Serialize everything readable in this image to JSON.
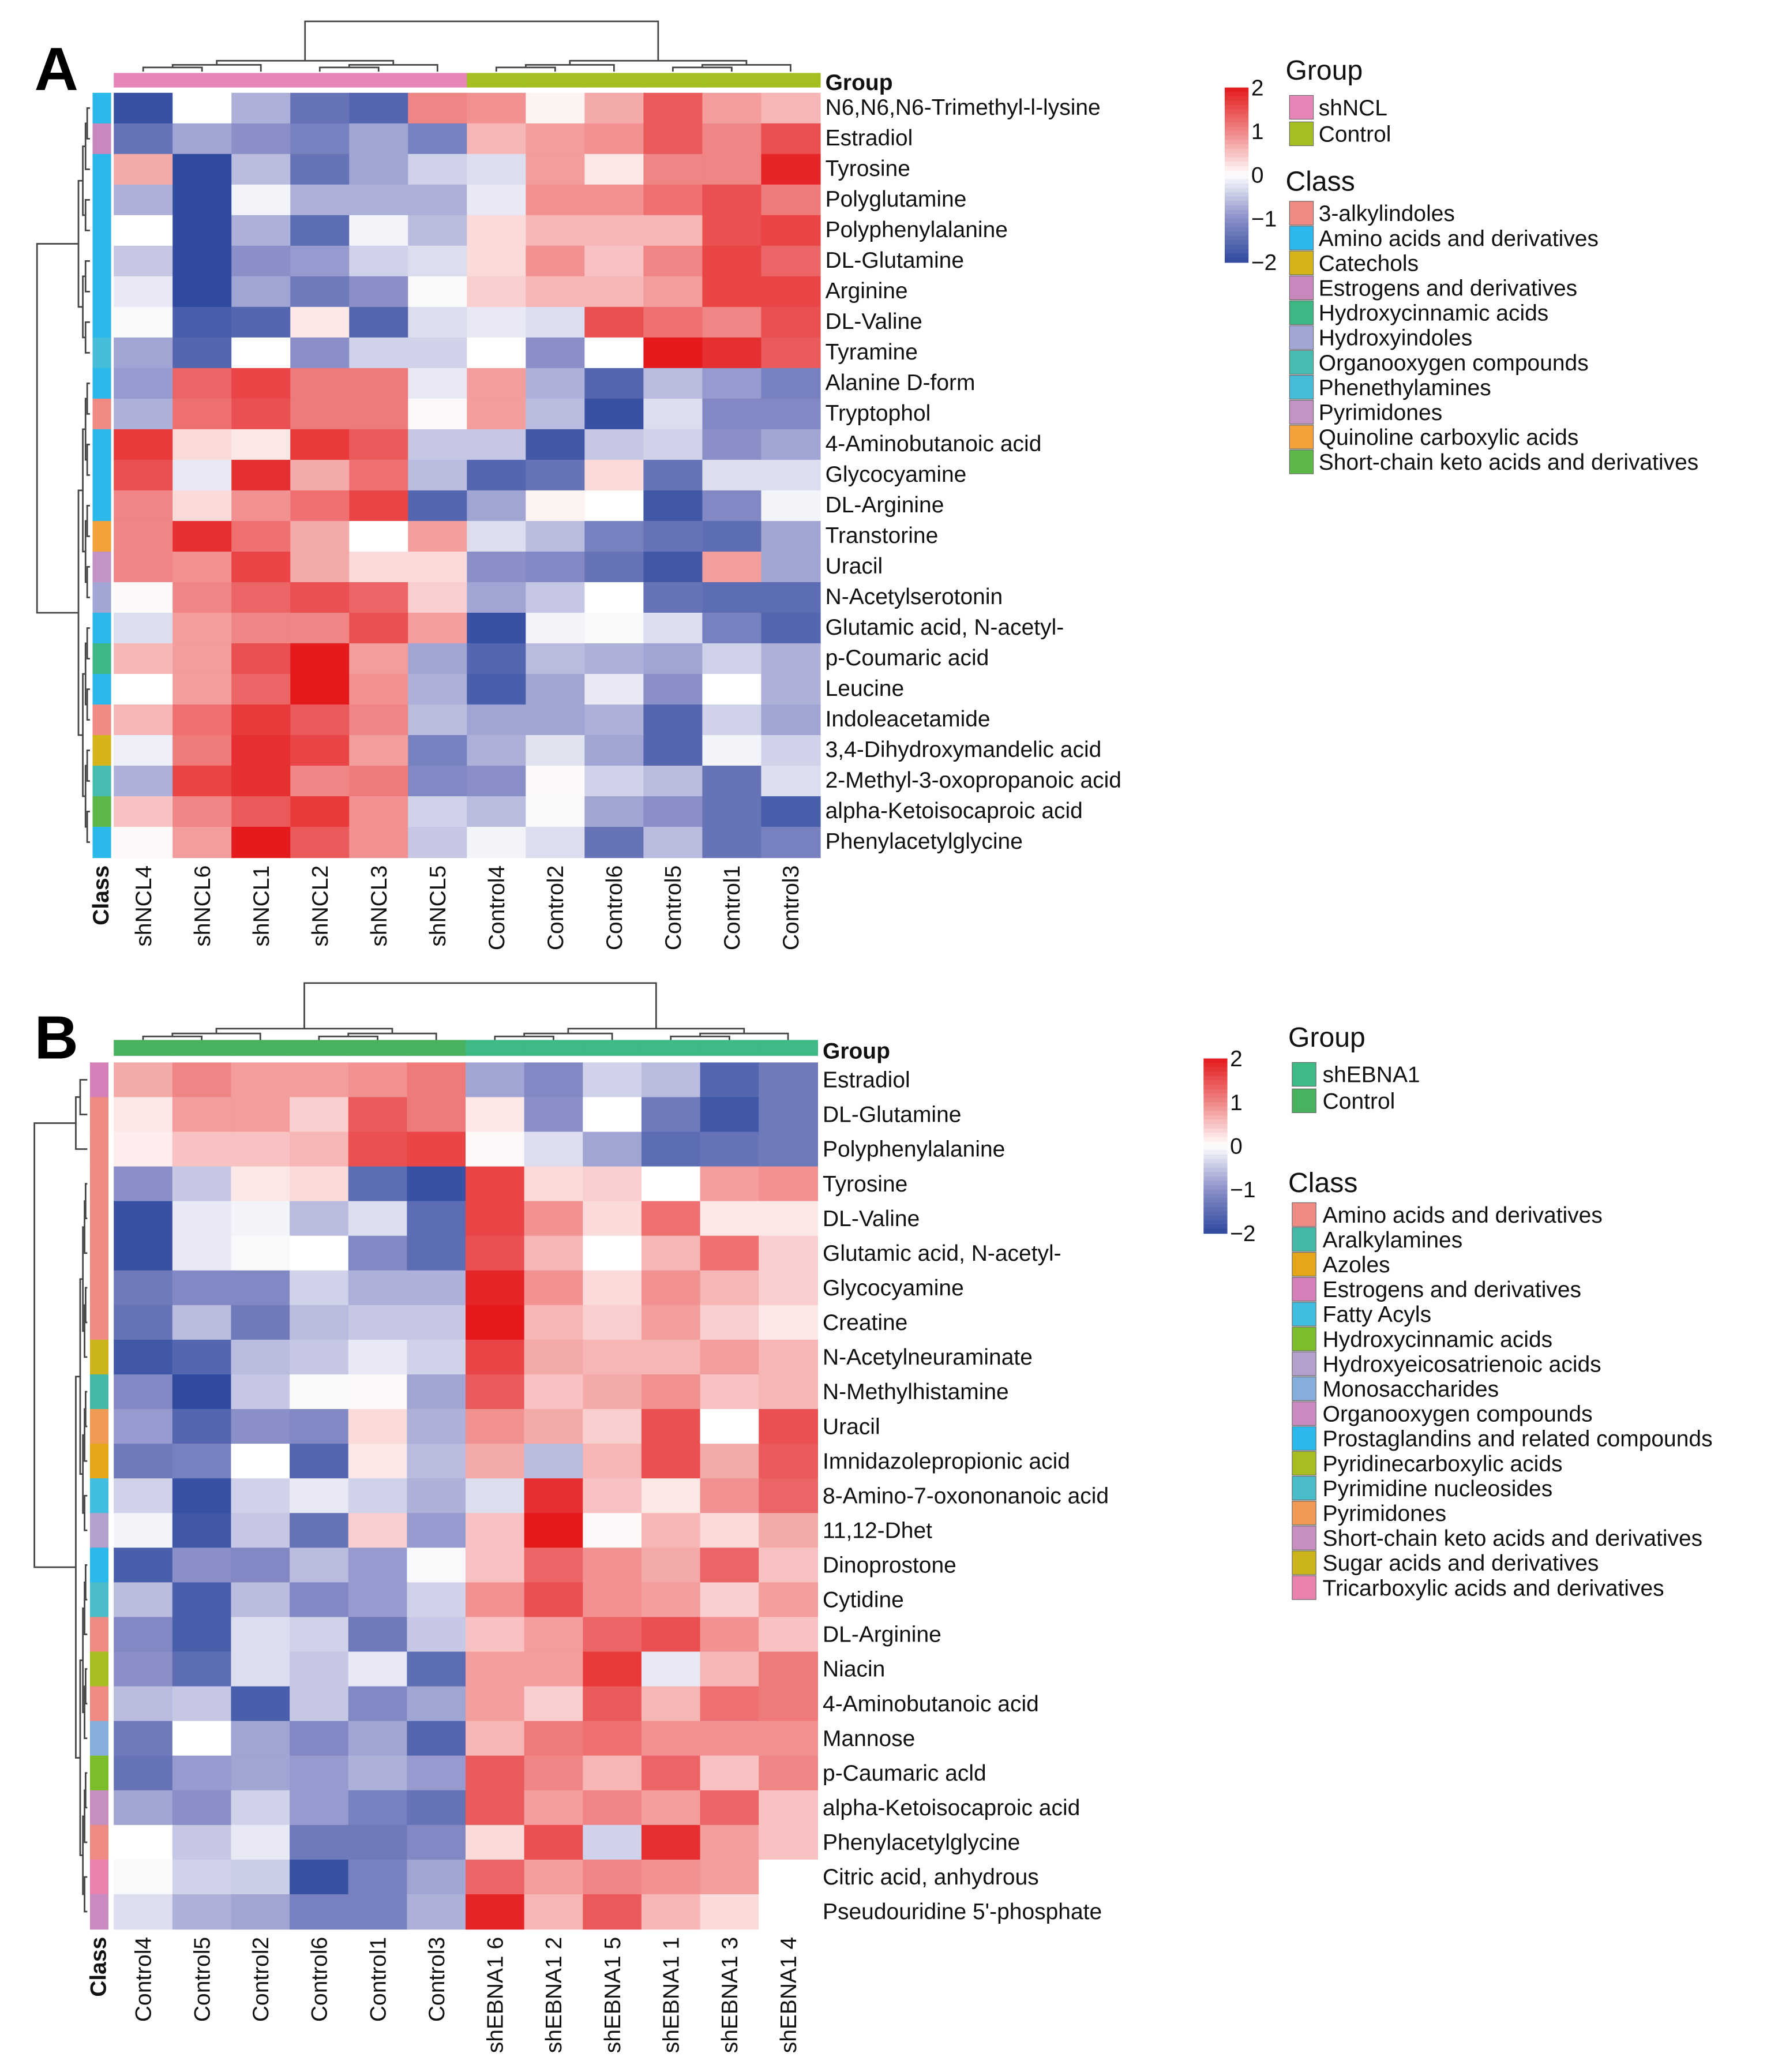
{
  "chart_data": [
    {
      "type": "heatmap",
      "panel_label": "A",
      "group_header": "Group",
      "class_header": "Class",
      "columns": [
        "shNCL4",
        "shNCL6",
        "shNCL1",
        "shNCL2",
        "shNCL3",
        "shNCL5",
        "Control4",
        "Control2",
        "Control6",
        "Control5",
        "Control1",
        "Control3"
      ],
      "column_groups": [
        "shNCL",
        "shNCL",
        "shNCL",
        "shNCL",
        "shNCL",
        "shNCL",
        "Control",
        "Control",
        "Control",
        "Control",
        "Control",
        "Control"
      ],
      "rows": [
        "N6,N6,N6-Trimethyl-l-lysine",
        "Estradiol",
        "Tyrosine",
        "Polyglutamine",
        "Polyphenylalanine",
        "DL-Glutamine",
        "Arginine",
        "DL-Valine",
        "Tyramine",
        "Alanine D-form",
        "Tryptophol",
        "4-Aminobutanoic acid",
        "Glycocyamine",
        "DL-Arginine",
        "Transtorine",
        "Uracil",
        "N-Acetylserotonin",
        "Glutamic acid, N-acetyl-",
        "p-Coumaric acid",
        "Leucine",
        "Indoleacetamide",
        "3,4-Dihydroxymandelic acid",
        "2-Methyl-3-oxopropanoic acid",
        "alpha-Ketoisocaproic acid",
        "Phenylacetylglycine"
      ],
      "row_classes": [
        "Amino acids and derivatives",
        "Estrogens and derivatives",
        "Amino acids and derivatives",
        "Amino acids and derivatives",
        "Amino acids and derivatives",
        "Amino acids and derivatives",
        "Amino acids and derivatives",
        "Amino acids and derivatives",
        "Phenethylamines",
        "Amino acids and derivatives",
        "3-alkylindoles",
        "Amino acids and derivatives",
        "Amino acids and derivatives",
        "Amino acids and derivatives",
        "Quinoline carboxylic acids",
        "Pyrimidones",
        "Hydroxyindoles",
        "Amino acids and derivatives",
        "Hydroxycinnamic acids",
        "Amino acids and derivatives",
        "3-alkylindoles",
        "Catechols",
        "Organooxygen compounds",
        "Short-chain keto acids and derivatives",
        "Amino acids and derivatives"
      ],
      "values": [
        [
          -1.9,
          0,
          -0.7,
          -1.4,
          -1.6,
          1.0,
          0.9,
          0.1,
          0.7,
          1.4,
          0.8,
          0.6
        ],
        [
          -1.4,
          -0.8,
          -1.0,
          -1.2,
          -0.8,
          -1.2,
          0.6,
          0.8,
          0.9,
          1.4,
          1.0,
          1.5
        ],
        [
          0.7,
          -2,
          -0.6,
          -1.4,
          -0.8,
          -0.4,
          -0.3,
          0.8,
          0.2,
          1.0,
          1.0,
          1.9
        ],
        [
          -0.7,
          -2,
          -0.1,
          -0.7,
          -0.7,
          -0.7,
          -0.2,
          0.9,
          0.9,
          1.2,
          1.5,
          1.1
        ],
        [
          0,
          -2,
          -0.7,
          -1.5,
          -0.1,
          -0.6,
          0.3,
          0.6,
          0.6,
          0.6,
          1.5,
          1.6
        ],
        [
          -0.5,
          -2,
          -1.0,
          -0.9,
          -0.4,
          -0.3,
          0.3,
          0.9,
          0.5,
          1.0,
          1.6,
          1.3
        ],
        [
          -0.2,
          -2,
          -0.8,
          -1.3,
          -1.0,
          -0.05,
          0.4,
          0.6,
          0.6,
          0.8,
          1.6,
          1.6
        ],
        [
          -0.05,
          -1.7,
          -1.6,
          0.2,
          -1.6,
          -0.3,
          -0.2,
          -0.3,
          1.5,
          1.2,
          1.0,
          1.5
        ],
        [
          -0.8,
          -1.6,
          0,
          -1.0,
          -0.4,
          -0.4,
          0,
          -1.0,
          0,
          2.0,
          1.8,
          1.4
        ],
        [
          -0.9,
          1.3,
          1.6,
          1.1,
          1.1,
          -0.2,
          0.8,
          -0.7,
          -1.6,
          -0.6,
          -0.9,
          -1.2
        ],
        [
          -0.7,
          1.2,
          1.5,
          1.1,
          1.1,
          0.05,
          0.8,
          -0.6,
          -1.9,
          -0.3,
          -1.1,
          -1.1
        ],
        [
          1.7,
          0.3,
          0.2,
          1.7,
          1.4,
          -0.5,
          -0.5,
          -1.8,
          -0.5,
          -0.4,
          -1.0,
          -0.8
        ],
        [
          1.5,
          -0.2,
          1.8,
          0.7,
          1.2,
          -0.6,
          -1.6,
          -1.4,
          0.3,
          -1.4,
          -0.3,
          -0.3
        ],
        [
          1.0,
          0.3,
          0.9,
          1.2,
          1.6,
          -1.6,
          -0.8,
          0.1,
          0,
          -1.8,
          -1.1,
          -0.1
        ],
        [
          1.0,
          1.8,
          1.2,
          0.7,
          0,
          0.8,
          -0.3,
          -0.6,
          -1.2,
          -1.4,
          -1.5,
          -0.8
        ],
        [
          1.0,
          0.9,
          1.6,
          0.7,
          0.3,
          0.3,
          -1.0,
          -1.1,
          -1.4,
          -1.8,
          0.8,
          -0.8
        ],
        [
          0.05,
          1.0,
          1.3,
          1.5,
          1.3,
          0.4,
          -0.8,
          -0.5,
          0,
          -1.4,
          -1.5,
          -1.5
        ],
        [
          -0.3,
          0.8,
          1.0,
          1.0,
          1.5,
          0.8,
          -1.9,
          -0.1,
          -0.05,
          -0.3,
          -1.2,
          -1.6
        ],
        [
          0.6,
          0.8,
          1.5,
          2.0,
          0.8,
          -0.8,
          -1.6,
          -0.6,
          -0.7,
          -0.8,
          -0.4,
          -0.7
        ],
        [
          0,
          0.8,
          1.3,
          2.0,
          0.9,
          -0.7,
          -1.7,
          -0.8,
          -0.2,
          -1.0,
          0,
          -0.7
        ],
        [
          0.6,
          1.2,
          1.7,
          1.4,
          1.0,
          -0.6,
          -0.8,
          -0.8,
          -0.7,
          -1.6,
          -0.4,
          -0.8
        ],
        [
          -0.15,
          1.1,
          1.8,
          1.6,
          0.8,
          -1.2,
          -0.7,
          -0.25,
          -0.8,
          -1.6,
          -0.1,
          -0.4
        ],
        [
          -0.7,
          1.6,
          1.8,
          1.0,
          1.1,
          -1.1,
          -1.0,
          0.05,
          -0.4,
          -0.6,
          -1.4,
          -0.3
        ],
        [
          0.5,
          1.0,
          1.4,
          1.7,
          0.9,
          -0.4,
          -0.6,
          -0.05,
          -0.8,
          -1.0,
          -1.4,
          -1.7
        ],
        [
          0.05,
          0.8,
          2.0,
          1.4,
          0.9,
          -0.5,
          -0.1,
          -0.3,
          -1.4,
          -0.6,
          -1.4,
          -1.2
        ]
      ],
      "color_scale": {
        "min": -2,
        "max": 2,
        "ticks": [
          "2",
          "1",
          "0",
          "−1",
          "−2"
        ],
        "colors": [
          "#2f4a9e",
          "#8a8fc8",
          "#ffffff",
          "#f08585",
          "#e41a1c"
        ]
      },
      "group_legend": [
        {
          "label": "shNCL",
          "color": "#e585b8"
        },
        {
          "label": "Control",
          "color": "#a3c020"
        }
      ],
      "class_legend": [
        {
          "label": "3-alkylindoles",
          "color": "#f08b84"
        },
        {
          "label": "Amino acids and derivatives",
          "color": "#2bb9ec"
        },
        {
          "label": "Catechols",
          "color": "#d4b41a"
        },
        {
          "label": "Estrogens and derivatives",
          "color": "#c988bd"
        },
        {
          "label": "Hydroxycinnamic acids",
          "color": "#3db884"
        },
        {
          "label": "Hydroxyindoles",
          "color": "#a1a6d4"
        },
        {
          "label": "Organooxygen compounds",
          "color": "#46bdb0"
        },
        {
          "label": "Phenethylamines",
          "color": "#45bcd8"
        },
        {
          "label": "Pyrimidones",
          "color": "#c493c6"
        },
        {
          "label": "Quinoline carboxylic acids",
          "color": "#f3a23a"
        },
        {
          "label": "Short-chain keto acids and derivatives",
          "color": "#5cb947"
        }
      ]
    },
    {
      "type": "heatmap",
      "panel_label": "B",
      "group_header": "Group",
      "class_header": "Class",
      "columns": [
        "Control4",
        "Control5",
        "Control2",
        "Control6",
        "Control1",
        "Control3",
        "shEBNA1 6",
        "shEBNA1 2",
        "shEBNA1 5",
        "shEBNA1 1",
        "shEBNA1 3",
        "shEBNA1 4"
      ],
      "column_groups": [
        "Control",
        "Control",
        "Control",
        "Control",
        "Control",
        "Control",
        "shEBNA1",
        "shEBNA1",
        "shEBNA1",
        "shEBNA1",
        "shEBNA1",
        "shEBNA1"
      ],
      "rows": [
        "Estradiol",
        "DL-Glutamine",
        "Polyphenylalanine",
        "Tyrosine",
        "DL-Valine",
        "Glutamic acid, N-acetyl-",
        "Glycocyamine",
        "Creatine",
        "N-Acetylneuraminate",
        "N-Methylhistamine",
        "Uracil",
        "Imnidazolepropionic acid",
        "8-Amino-7-oxononanoic acid",
        "11,12-Dhet",
        "Dinoprostone",
        "Cytidine",
        "DL-Arginine",
        "Niacin",
        "4-Aminobutanoic acid",
        "Mannose",
        "p-Caumaric acld",
        "alpha-Ketoisocaproic acid",
        "Phenylacetylglycine",
        "Citric acid, anhydrous",
        "Pseudouridine 5'-phosphate"
      ],
      "row_classes": [
        "Estrogens and derivatives",
        "Amino acids and derivatives",
        "Amino acids and derivatives",
        "Amino acids and derivatives",
        "Amino acids and derivatives",
        "Amino acids and derivatives",
        "Amino acids and derivatives",
        "Amino acids and derivatives",
        "Sugar acids and derivatives",
        "Aralkylamines",
        "Pyrimidones",
        "Azoles",
        "Fatty Acyls",
        "Hydroxyeicosatrienoic acids",
        "Prostaglandins and related compounds",
        "Pyrimidine nucleosides",
        "Amino acids and derivatives",
        "Pyridinecarboxylic acids",
        "Amino acids and derivatives",
        "Monosaccharides",
        "Hydroxycinnamic acids",
        "Short-chain keto acids and derivatives",
        "Amino acids and derivatives",
        "Tricarboxylic acids and derivatives",
        "Organooxygen compounds"
      ],
      "values": [
        [
          0.7,
          1.0,
          0.8,
          0.8,
          0.9,
          1.1,
          -0.8,
          -1.1,
          -0.4,
          -0.6,
          -1.6,
          -1.3
        ],
        [
          0.2,
          0.8,
          0.8,
          0.4,
          1.4,
          1.1,
          0.2,
          -1.0,
          0,
          -1.3,
          -1.8,
          -1.3
        ],
        [
          0.15,
          0.5,
          0.5,
          0.6,
          1.5,
          1.6,
          0.05,
          -0.3,
          -0.8,
          -1.5,
          -1.4,
          -1.3
        ],
        [
          -1.0,
          -0.5,
          0.2,
          0.3,
          -1.5,
          -1.9,
          1.6,
          0.3,
          0.4,
          0,
          0.8,
          0.9
        ],
        [
          -1.9,
          -0.2,
          -0.1,
          -0.6,
          -0.3,
          -1.5,
          1.6,
          0.9,
          0.3,
          1.2,
          0.2,
          0.2
        ],
        [
          -1.9,
          -0.2,
          -0.05,
          0,
          -1.1,
          -1.5,
          1.5,
          0.6,
          0,
          0.6,
          1.2,
          0.4
        ],
        [
          -1.3,
          -1.1,
          -1.1,
          -0.4,
          -0.7,
          -0.7,
          1.9,
          0.9,
          0.3,
          0.9,
          0.6,
          0.4
        ],
        [
          -1.4,
          -0.6,
          -1.3,
          -0.6,
          -0.5,
          -0.5,
          2.0,
          0.6,
          0.4,
          0.8,
          0.4,
          0.2
        ],
        [
          -1.8,
          -1.6,
          -0.6,
          -0.5,
          -0.2,
          -0.4,
          1.6,
          0.7,
          0.6,
          0.6,
          0.8,
          0.6
        ],
        [
          -1.1,
          -2,
          -0.5,
          -0.05,
          0.05,
          -0.8,
          1.4,
          0.5,
          0.7,
          0.9,
          0.5,
          0.6
        ],
        [
          -0.9,
          -1.6,
          -1.0,
          -1.1,
          0.3,
          -0.7,
          0.9,
          0.7,
          0.4,
          1.5,
          0,
          1.5
        ],
        [
          -1.3,
          -1.2,
          0,
          -1.6,
          0.2,
          -0.6,
          0.7,
          -0.6,
          0.6,
          1.5,
          0.7,
          1.4
        ],
        [
          -0.4,
          -1.9,
          -0.4,
          -0.2,
          -0.4,
          -0.7,
          -0.3,
          1.8,
          0.5,
          0.2,
          0.9,
          1.3
        ],
        [
          -0.1,
          -1.8,
          -0.5,
          -1.4,
          0.4,
          -0.9,
          0.5,
          2.0,
          0.05,
          0.6,
          0.3,
          0.7
        ],
        [
          -1.7,
          -1.0,
          -1.1,
          -0.6,
          -0.9,
          -0.05,
          0.5,
          1.3,
          0.9,
          0.7,
          1.3,
          0.5
        ],
        [
          -0.6,
          -1.7,
          -0.6,
          -1.1,
          -0.9,
          -0.4,
          0.9,
          1.5,
          0.9,
          0.8,
          0.4,
          0.8
        ],
        [
          -1.1,
          -1.7,
          -0.3,
          -0.4,
          -1.3,
          -0.5,
          0.5,
          0.8,
          1.3,
          1.5,
          0.9,
          0.5
        ],
        [
          -1.0,
          -1.5,
          -0.3,
          -0.5,
          -0.2,
          -1.5,
          0.8,
          0.8,
          1.7,
          -0.2,
          0.6,
          1.1
        ],
        [
          -0.6,
          -0.5,
          -1.7,
          -0.5,
          -1.1,
          -0.8,
          0.8,
          0.4,
          1.4,
          0.6,
          1.2,
          1.1
        ],
        [
          -1.3,
          0,
          -0.8,
          -1.1,
          -0.8,
          -1.6,
          0.6,
          1.1,
          1.2,
          0.9,
          0.9,
          0.9
        ],
        [
          -1.4,
          -0.9,
          -0.8,
          -0.9,
          -0.7,
          -0.9,
          1.4,
          1.0,
          0.6,
          1.3,
          0.5,
          1.0
        ],
        [
          -0.8,
          -1.0,
          -0.4,
          -0.9,
          -1.2,
          -1.4,
          1.4,
          0.8,
          1.0,
          0.8,
          1.3,
          0.5
        ],
        [
          0,
          -0.5,
          -0.2,
          -1.3,
          -1.3,
          -1.1,
          0.3,
          1.5,
          -0.4,
          1.8,
          0.8,
          0.5
        ],
        [
          -0.05,
          -0.4,
          -0.45,
          -1.9,
          -1.2,
          -0.8,
          1.3,
          0.8,
          1.0,
          0.9,
          0.8,
          null
        ],
        [
          -0.3,
          -0.7,
          -0.8,
          -1.2,
          -1.2,
          -0.7,
          1.9,
          0.6,
          1.4,
          0.6,
          0.3,
          null
        ]
      ],
      "color_scale": {
        "min": -2,
        "max": 2,
        "ticks": [
          "2",
          "1",
          "0",
          "−1",
          "−2"
        ],
        "colors": [
          "#2f4a9e",
          "#8a8fc8",
          "#ffffff",
          "#f08585",
          "#e41a1c"
        ]
      },
      "group_legend": [
        {
          "label": "shEBNA1",
          "color": "#3dba85"
        },
        {
          "label": "Control",
          "color": "#48b25e"
        }
      ],
      "class_legend": [
        {
          "label": "Amino acids and derivatives",
          "color": "#f08b84"
        },
        {
          "label": "Aralkylamines",
          "color": "#45b9a8"
        },
        {
          "label": "Azoles",
          "color": "#e6a61a"
        },
        {
          "label": "Estrogens and derivatives",
          "color": "#d47fb8"
        },
        {
          "label": "Fatty Acyls",
          "color": "#40bde0"
        },
        {
          "label": "Hydroxycinnamic acids",
          "color": "#7bbd2b"
        },
        {
          "label": "Hydroxyeicosatrienoic acids",
          "color": "#b3a0cc"
        },
        {
          "label": "Monosaccharides",
          "color": "#85aedc"
        },
        {
          "label": "Organooxygen compounds",
          "color": "#c98ac0"
        },
        {
          "label": "Prostaglandins and related compounds",
          "color": "#2bb9ec"
        },
        {
          "label": "Pyridinecarboxylic acids",
          "color": "#a8bd22"
        },
        {
          "label": "Pyrimidine nucleosides",
          "color": "#4bbdc8"
        },
        {
          "label": "Pyrimidones",
          "color": "#f09a55"
        },
        {
          "label": "Short-chain keto acids and derivatives",
          "color": "#c68fc0"
        },
        {
          "label": "Sugar acids and derivatives",
          "color": "#cbb41c"
        },
        {
          "label": "Tricarboxylic acids and derivatives",
          "color": "#ea82b0"
        }
      ]
    }
  ]
}
